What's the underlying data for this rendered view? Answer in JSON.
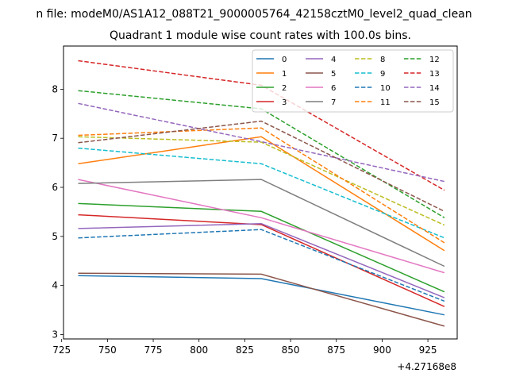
{
  "chart_data": {
    "type": "line",
    "suptitle": "n file: modeM0/AS1A12_088T21_9000005764_42158cztM0_level2_quad_clean",
    "title": "Quadrant 1 module wise count rates with 100.0s bins.",
    "xlabel": "",
    "ylabel": "",
    "x_offset_label": "+4.27168e8",
    "x": [
      734,
      834,
      934
    ],
    "xlim": [
      726,
      941
    ],
    "ylim": [
      2.91,
      8.88
    ],
    "xticks": [
      725,
      750,
      775,
      800,
      825,
      850,
      875,
      900,
      925
    ],
    "xtick_labels": [
      "725",
      "750",
      "775",
      "800",
      "825",
      "850",
      "875",
      "900",
      "925"
    ],
    "yticks": [
      3,
      4,
      5,
      6,
      7,
      8
    ],
    "ytick_labels": [
      "3",
      "4",
      "5",
      "6",
      "7",
      "8"
    ],
    "grid": false,
    "legend_position": "top-right",
    "legend_columns": 4,
    "series": [
      {
        "name": "0",
        "color": "#1f77b4",
        "dashed": false,
        "values": [
          4.2,
          4.14,
          3.4
        ]
      },
      {
        "name": "1",
        "color": "#ff7f0e",
        "dashed": false,
        "values": [
          6.48,
          7.03,
          4.71
        ]
      },
      {
        "name": "2",
        "color": "#2ca02c",
        "dashed": false,
        "values": [
          5.67,
          5.51,
          3.87
        ]
      },
      {
        "name": "3",
        "color": "#d62728",
        "dashed": false,
        "values": [
          5.44,
          5.24,
          3.57
        ]
      },
      {
        "name": "4",
        "color": "#9467bd",
        "dashed": false,
        "values": [
          5.16,
          5.26,
          3.75
        ]
      },
      {
        "name": "5",
        "color": "#8c564b",
        "dashed": false,
        "values": [
          4.25,
          4.23,
          3.17
        ]
      },
      {
        "name": "6",
        "color": "#e377c2",
        "dashed": false,
        "values": [
          6.16,
          5.38,
          4.26
        ]
      },
      {
        "name": "7",
        "color": "#7f7f7f",
        "dashed": false,
        "values": [
          6.08,
          6.16,
          4.39
        ]
      },
      {
        "name": "8",
        "color": "#bcbd22",
        "dashed": true,
        "values": [
          7.03,
          6.92,
          5.23
        ]
      },
      {
        "name": "9",
        "color": "#17becf",
        "dashed": true,
        "values": [
          6.8,
          6.48,
          4.97
        ]
      },
      {
        "name": "10",
        "color": "#1f77b4",
        "dashed": true,
        "values": [
          4.97,
          5.14,
          3.68
        ]
      },
      {
        "name": "11",
        "color": "#ff7f0e",
        "dashed": true,
        "values": [
          7.06,
          7.21,
          4.87
        ]
      },
      {
        "name": "12",
        "color": "#2ca02c",
        "dashed": true,
        "values": [
          7.97,
          7.6,
          5.38
        ]
      },
      {
        "name": "13",
        "color": "#d62728",
        "dashed": true,
        "values": [
          8.58,
          8.08,
          5.94
        ]
      },
      {
        "name": "14",
        "color": "#9467bd",
        "dashed": true,
        "values": [
          7.71,
          6.93,
          6.12
        ]
      },
      {
        "name": "15",
        "color": "#8c564b",
        "dashed": true,
        "values": [
          6.91,
          7.35,
          5.51
        ]
      }
    ]
  }
}
